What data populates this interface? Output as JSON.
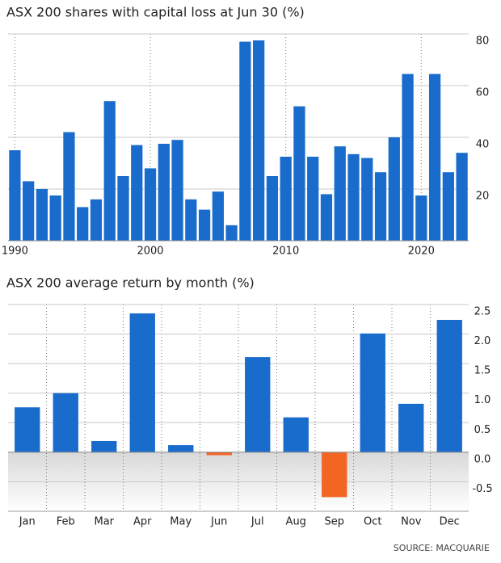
{
  "chart_data": [
    {
      "type": "bar",
      "title": "ASX 200 shares with capital loss at Jun 30 (%)",
      "x": [
        1990,
        1991,
        1992,
        1993,
        1994,
        1995,
        1996,
        1997,
        1998,
        1999,
        2000,
        2001,
        2002,
        2003,
        2004,
        2005,
        2006,
        2007,
        2008,
        2009,
        2010,
        2011,
        2012,
        2013,
        2014,
        2015,
        2016,
        2017,
        2018,
        2019,
        2020,
        2021,
        2022,
        2023
      ],
      "values": [
        35,
        23,
        20,
        17.5,
        42,
        13,
        16,
        54,
        25,
        37,
        28,
        37.5,
        39,
        16,
        12,
        19,
        6,
        77,
        77.5,
        25,
        32.5,
        52,
        32.5,
        18,
        36.5,
        33.5,
        32,
        26.5,
        40,
        64.5,
        17.5,
        64.5,
        26.5,
        34
      ],
      "color": "#1a6ccc",
      "xlim": [
        1989.5,
        2023.5
      ],
      "xticks": [
        1990,
        2000,
        2010,
        2020
      ],
      "ylim": [
        0,
        80
      ],
      "yticks": [
        20,
        40,
        60,
        80
      ],
      "grid": true
    },
    {
      "type": "bar",
      "title": "ASX 200 average return by month (%)",
      "categories": [
        "Jan",
        "Feb",
        "Mar",
        "Apr",
        "May",
        "Jun",
        "Jul",
        "Aug",
        "Sep",
        "Oct",
        "Nov",
        "Dec"
      ],
      "values": [
        0.76,
        1.0,
        0.19,
        2.35,
        0.12,
        -0.05,
        1.61,
        0.59,
        -0.76,
        2.01,
        0.82,
        2.24
      ],
      "color": "#1a6ccc",
      "negative_color": "#f26522",
      "ylim": [
        -1,
        2.5
      ],
      "yticks": [
        2.5,
        {
          "value": 2,
          "label": "2.0"
        },
        1.5,
        {
          "value": 1,
          "label": "1.0"
        },
        0.5,
        {
          "value": 0,
          "label": "0.0"
        },
        -0.5
      ],
      "grid": true
    }
  ],
  "source": "SOURCE: MACQUARIE"
}
